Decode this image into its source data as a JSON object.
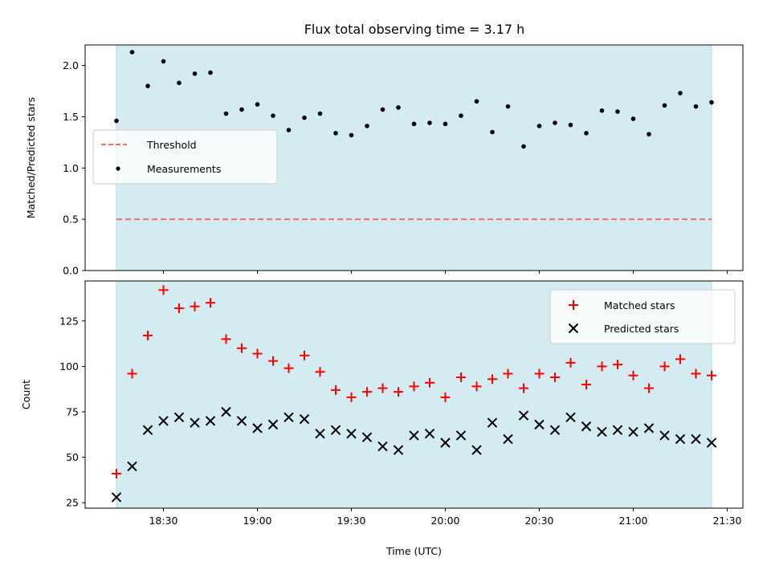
{
  "chart_data": [
    {
      "type": "scatter",
      "title": "Flux total observing time = 3.17 h",
      "xlabel": "",
      "ylabel": "Matched/Predicted stars",
      "ylim": [
        0,
        2.2
      ],
      "yticks": [
        "0.0",
        "0.5",
        "1.0",
        "1.5",
        "2.0"
      ],
      "ytick_values": [
        0,
        0.5,
        1.0,
        1.5,
        2.0
      ],
      "observing_window": [
        "18:15",
        "21:25"
      ],
      "legend": {
        "placement": "center-left",
        "entries": [
          "Threshold",
          "Measurements"
        ]
      },
      "series": [
        {
          "name": "Threshold",
          "kind": "line",
          "style": "dashed",
          "color": "#f07070",
          "x": [
            "18:15",
            "21:25"
          ],
          "y": [
            0.5,
            0.5
          ]
        },
        {
          "name": "Measurements",
          "kind": "points",
          "color": "#000000",
          "x": [
            "18:15",
            "18:20",
            "18:25",
            "18:30",
            "18:35",
            "18:40",
            "18:45",
            "18:50",
            "18:55",
            "19:00",
            "19:05",
            "19:10",
            "19:15",
            "19:20",
            "19:25",
            "19:30",
            "19:35",
            "19:40",
            "19:45",
            "19:50",
            "19:55",
            "20:00",
            "20:05",
            "20:10",
            "20:15",
            "20:20",
            "20:25",
            "20:30",
            "20:35",
            "20:40",
            "20:45",
            "20:50",
            "20:55",
            "21:00",
            "21:05",
            "21:10",
            "21:15",
            "21:20",
            "21:25"
          ],
          "y": [
            1.46,
            2.13,
            1.8,
            2.04,
            1.83,
            1.92,
            1.93,
            1.53,
            1.57,
            1.62,
            1.51,
            1.37,
            1.49,
            1.53,
            1.34,
            1.32,
            1.41,
            1.57,
            1.59,
            1.43,
            1.44,
            1.43,
            1.51,
            1.65,
            1.35,
            1.6,
            1.21,
            1.41,
            1.44,
            1.42,
            1.34,
            1.56,
            1.55,
            1.48,
            1.33,
            1.61,
            1.73,
            1.6,
            1.64
          ]
        }
      ]
    },
    {
      "type": "scatter",
      "title": "",
      "xlabel": "Time (UTC)",
      "ylabel": "Count",
      "ylim": [
        22,
        147
      ],
      "yticks": [
        "25",
        "50",
        "75",
        "100",
        "125"
      ],
      "ytick_values": [
        25,
        50,
        75,
        100,
        125
      ],
      "xlim": [
        "18:05",
        "21:35"
      ],
      "xticks": [
        "18:30",
        "19:00",
        "19:30",
        "20:00",
        "20:30",
        "21:00",
        "21:30"
      ],
      "observing_window": [
        "18:15",
        "21:25"
      ],
      "legend": {
        "placement": "upper-right",
        "entries": [
          "Matched stars",
          "Predicted stars"
        ]
      },
      "series": [
        {
          "name": "Matched stars",
          "marker": "+",
          "color": "#ff0000",
          "x": [
            "18:15",
            "18:20",
            "18:25",
            "18:30",
            "18:35",
            "18:40",
            "18:45",
            "18:50",
            "18:55",
            "19:00",
            "19:05",
            "19:10",
            "19:15",
            "19:20",
            "19:25",
            "19:30",
            "19:35",
            "19:40",
            "19:45",
            "19:50",
            "19:55",
            "20:00",
            "20:05",
            "20:10",
            "20:15",
            "20:20",
            "20:25",
            "20:30",
            "20:35",
            "20:40",
            "20:45",
            "20:50",
            "20:55",
            "21:00",
            "21:05",
            "21:10",
            "21:15",
            "21:20",
            "21:25"
          ],
          "y": [
            41,
            96,
            117,
            142,
            132,
            133,
            135,
            115,
            110,
            107,
            103,
            99,
            106,
            97,
            87,
            83,
            86,
            88,
            86,
            89,
            91,
            83,
            94,
            89,
            93,
            96,
            88,
            96,
            94,
            102,
            90,
            100,
            101,
            95,
            88,
            100,
            104,
            96,
            95
          ]
        },
        {
          "name": "Predicted stars",
          "marker": "x",
          "color": "#000000",
          "x": [
            "18:15",
            "18:20",
            "18:25",
            "18:30",
            "18:35",
            "18:40",
            "18:45",
            "18:50",
            "18:55",
            "19:00",
            "19:05",
            "19:10",
            "19:15",
            "19:20",
            "19:25",
            "19:30",
            "19:35",
            "19:40",
            "19:45",
            "19:50",
            "19:55",
            "20:00",
            "20:05",
            "20:10",
            "20:15",
            "20:20",
            "20:25",
            "20:30",
            "20:35",
            "20:40",
            "20:45",
            "20:50",
            "20:55",
            "21:00",
            "21:05",
            "21:10",
            "21:15",
            "21:20",
            "21:25"
          ],
          "y": [
            28,
            45,
            65,
            70,
            72,
            69,
            70,
            75,
            70,
            66,
            68,
            72,
            71,
            63,
            65,
            63,
            61,
            56,
            54,
            62,
            63,
            58,
            62,
            54,
            69,
            60,
            73,
            68,
            65,
            72,
            67,
            64,
            65,
            64,
            66,
            62,
            60,
            60,
            58
          ]
        }
      ]
    }
  ],
  "colors": {
    "observing_shade": "#d4ebf1",
    "observing_edge": "#add8e6",
    "threshold": "#f07070",
    "matched": "#ff0000",
    "predicted": "#000000",
    "measurements": "#000000"
  }
}
